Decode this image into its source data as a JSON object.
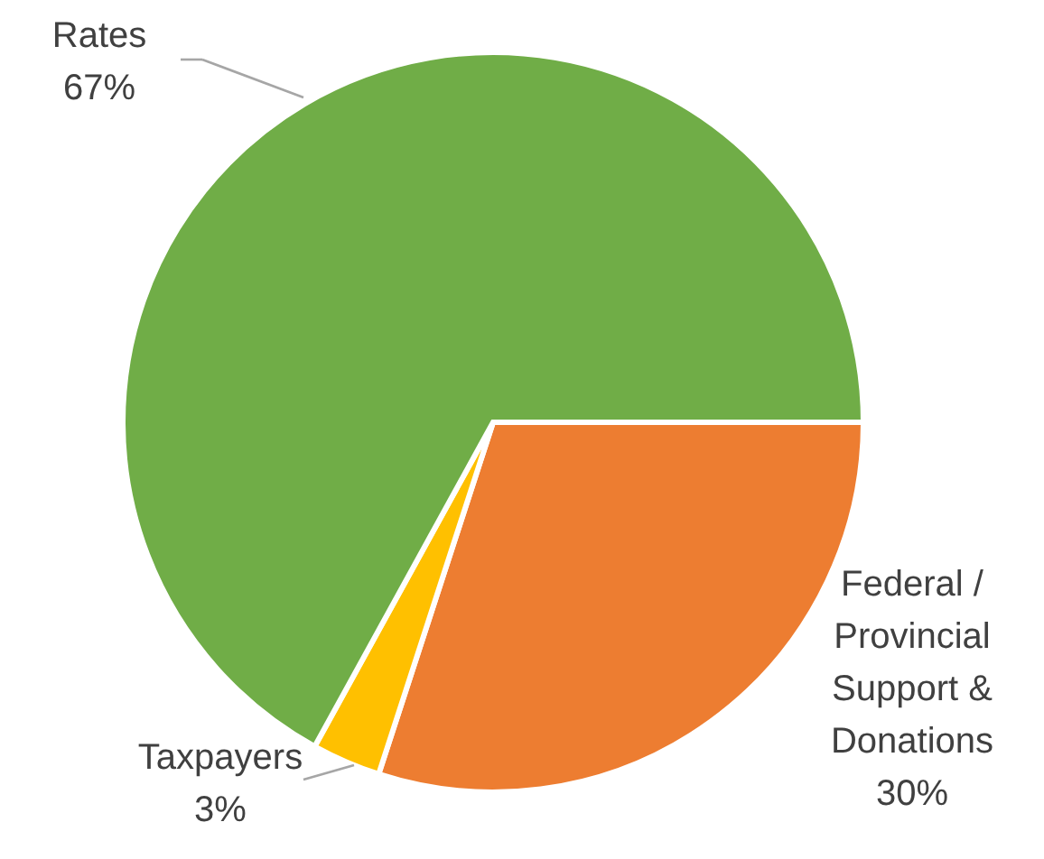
{
  "chart_data": {
    "type": "pie",
    "categories": [
      "Federal / Provincial Support & Donations",
      "Taxpayers",
      "Rates"
    ],
    "values": [
      30,
      3,
      67
    ],
    "colors": [
      "#ed7d31",
      "#ffc000",
      "#70ad47"
    ],
    "value_labels": [
      "30%",
      "3%",
      "67%"
    ]
  }
}
